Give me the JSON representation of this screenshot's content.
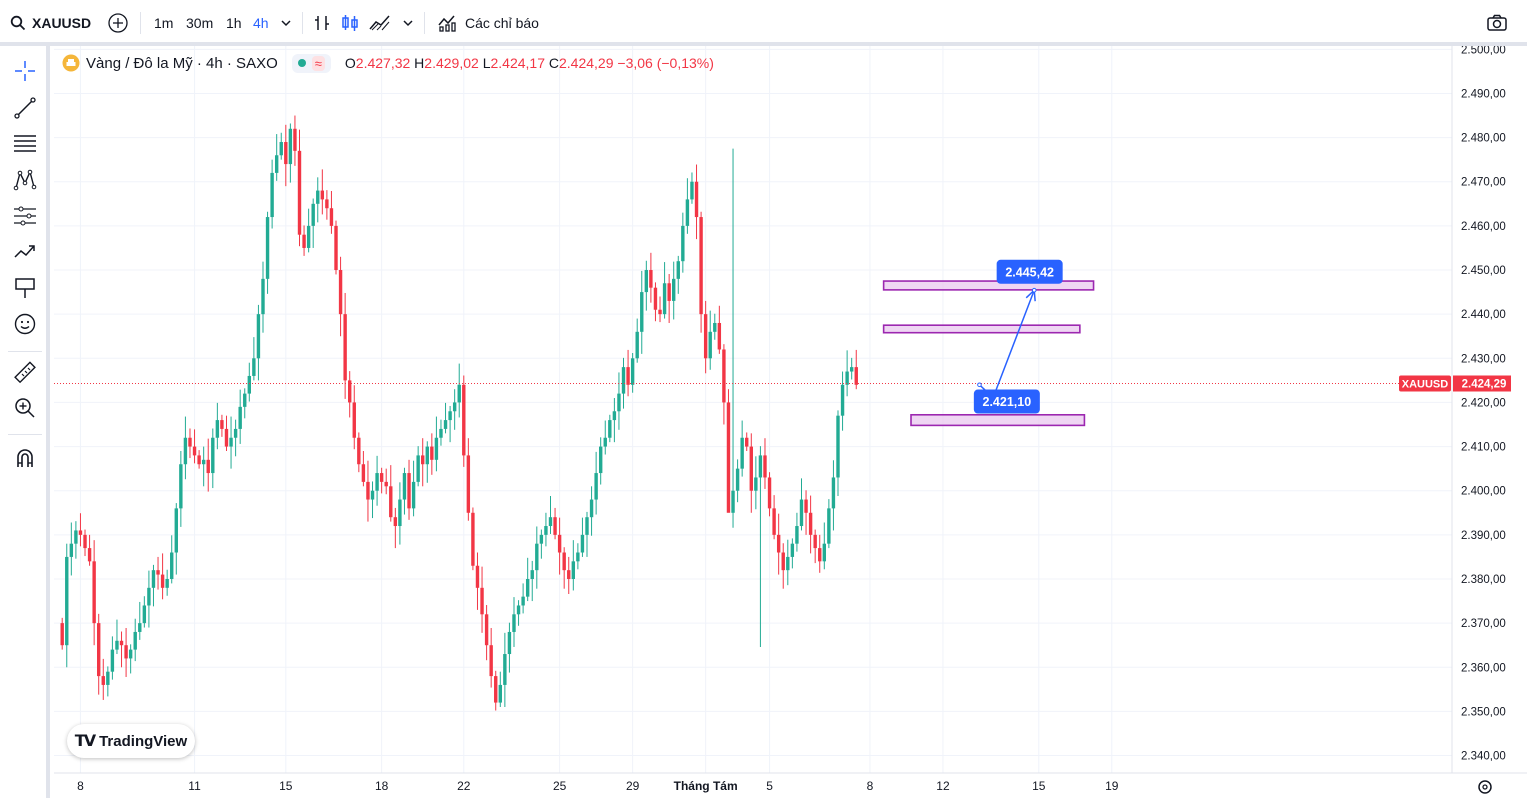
{
  "toolbar": {
    "symbol": "XAUUSD",
    "intervals": [
      "1m",
      "30m",
      "1h",
      "4h"
    ],
    "active_interval": "4h",
    "indicators_label": "Các chỉ báo"
  },
  "legend": {
    "title": "Vàng / Đô la Mỹ · 4h · SAXO",
    "open_label": "O",
    "open": "2.427,32",
    "high_label": "H",
    "high": "2.429,02",
    "low_label": "L",
    "low": "2.424,17",
    "close_label": "C",
    "close": "2.424,29",
    "change": "−3,06 (−0,13%)",
    "approx": "≈"
  },
  "branding": {
    "logo_text": "TradingView"
  },
  "colors": {
    "up": "#22ab94",
    "down": "#f23645",
    "accent": "#2962ff",
    "zone_fill": "#e9c8ef",
    "zone_border": "#9c27b0"
  },
  "chart_data": {
    "type": "candlestick",
    "symbol": "XAUUSD",
    "ylim": [
      2335,
      2501
    ],
    "y_ticks": [
      2340,
      2350,
      2360,
      2370,
      2380,
      2390,
      2400,
      2410,
      2420,
      2430,
      2440,
      2450,
      2460,
      2470,
      2480,
      2490,
      2500
    ],
    "y_tick_labels": [
      "2.340,00",
      "2.350,00",
      "2.360,00",
      "2.370,00",
      "2.380,00",
      "2.390,00",
      "2.400,00",
      "2.410,00",
      "2.420,00",
      "2.430,00",
      "2.440,00",
      "2.450,00",
      "2.460,00",
      "2.470,00",
      "2.480,00",
      "2.490,00",
      "2.500,00"
    ],
    "x_tick_labels": [
      "8",
      "11",
      "15",
      "18",
      "22",
      "25",
      "29",
      "Tháng Tám",
      "5",
      "8",
      "12",
      "15",
      "19"
    ],
    "x_tick_bar_index": [
      4,
      29,
      49,
      70,
      88,
      109,
      125,
      141,
      155,
      177,
      193,
      214,
      230
    ],
    "last_price": 2424.29,
    "last_price_tag": "XAUUSD",
    "last_price_label": "2.424,29",
    "closes": [
      2365,
      2385,
      2388,
      2391,
      2390,
      2387,
      2384,
      2370,
      2358,
      2356,
      2359,
      2364,
      2366,
      2365,
      2362,
      2364,
      2368,
      2370,
      2374,
      2378,
      2382,
      2381,
      2378,
      2380,
      2386,
      2396,
      2406,
      2412,
      2410,
      2408,
      2406,
      2407,
      2404,
      2412,
      2416,
      2414,
      2410,
      2412,
      2414,
      2419,
      2422,
      2426,
      2430,
      2440,
      2448,
      2462,
      2472,
      2476,
      2479,
      2474,
      2482,
      2477,
      2458,
      2455,
      2460,
      2465,
      2468,
      2466,
      2464,
      2460,
      2450,
      2440,
      2425,
      2420,
      2412,
      2406,
      2402,
      2398,
      2400,
      2404,
      2402,
      2401,
      2394,
      2392,
      2398,
      2404,
      2396,
      2402,
      2408,
      2406,
      2410,
      2407,
      2412,
      2414,
      2416,
      2418,
      2420,
      2424,
      2408,
      2395,
      2383,
      2378,
      2372,
      2365,
      2358,
      2352,
      2356,
      2363,
      2368,
      2372,
      2374,
      2376,
      2380,
      2382,
      2388,
      2390,
      2392,
      2394,
      2390,
      2386,
      2382,
      2380,
      2384,
      2386,
      2390,
      2394,
      2398,
      2404,
      2410,
      2412,
      2416,
      2418,
      2422,
      2428,
      2424,
      2430,
      2436,
      2445,
      2450,
      2446,
      2441,
      2440,
      2447,
      2443,
      2448,
      2452,
      2460,
      2466,
      2470,
      2462,
      2440,
      2430,
      2436,
      2438,
      2432,
      2420,
      2395,
      2400,
      2405,
      2412,
      2410,
      2400,
      2403,
      2408,
      2403,
      2396,
      2390,
      2386,
      2382,
      2385,
      2388,
      2392,
      2398,
      2395,
      2390,
      2387,
      2384,
      2388,
      2396,
      2403,
      2417,
      2424,
      2427,
      2428,
      2424
    ]
  },
  "annotations": {
    "zones": [
      {
        "from_bar": 180,
        "to_bar": 226,
        "top": 2447.5,
        "bottom": 2445.5
      },
      {
        "from_bar": 180,
        "to_bar": 223,
        "top": 2437.5,
        "bottom": 2435.8
      },
      {
        "from_bar": 186,
        "to_bar": 224,
        "top": 2417.2,
        "bottom": 2414.8
      }
    ],
    "path_points": [
      {
        "bar": 201,
        "price": 2424.0
      },
      {
        "bar": 204,
        "price": 2421.1
      },
      {
        "bar": 213,
        "price": 2445.42
      }
    ],
    "labels": [
      {
        "text": "2.445,42",
        "bar": 212,
        "price": 2449.6
      },
      {
        "text": "2.421,10",
        "bar": 207,
        "price": 2420.2
      }
    ]
  }
}
